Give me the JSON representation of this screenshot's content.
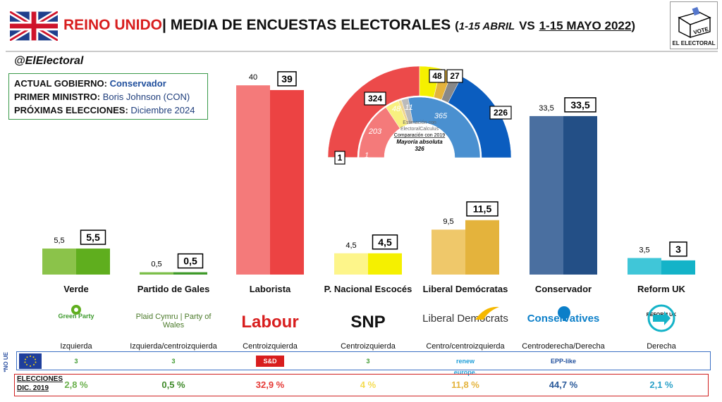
{
  "header": {
    "country": "REINO UNIDO",
    "separator": "|",
    "title": "MEDIA DE ENCUESTAS ELECTORALES",
    "period_a": "1-15 ABRIL",
    "vs": "VS",
    "period_b": "1-15 MAYO 2022"
  },
  "handle": "@ElElectoral",
  "info": {
    "gov_label": "ACTUAL GOBIERNO:",
    "gov_value": "Conservador",
    "pm_label": "PRIMER MINISTRO:",
    "pm_value": "Boris Johnson (CON)",
    "next_label": "PRÓXIMAS ELECCIONES:",
    "next_value": "Diciembre 2024"
  },
  "brand": {
    "vote": "VOTE",
    "name": "EL ELECTORAL"
  },
  "colors": {
    "verde_a": "#8bc34a",
    "verde_b": "#5fae1e",
    "gales_a": "#7cbf4a",
    "gales_b": "#3f9a2a",
    "laborista_a": "#f47a7a",
    "laborista_b": "#ec4343",
    "snp_a": "#fdf58a",
    "snp_b": "#f5f000",
    "libdem_a": "#efc86a",
    "libdem_b": "#e4b33c",
    "con_a": "#4a6fa0",
    "con_b": "#234f86",
    "reform_a": "#40c6d8",
    "reform_b": "#14b3c8"
  },
  "chart_data": {
    "type": "bar",
    "categories": [
      "Verde",
      "Partido de Gales",
      "Laborista",
      "P. Nacional Escocés",
      "Liberal Demócratas",
      "Conservador",
      "Reform UK"
    ],
    "series": [
      {
        "name": "1-15 ABRIL",
        "values": [
          5.5,
          0.5,
          40,
          4.5,
          9.5,
          33.5,
          3.5
        ],
        "labels": [
          "5,5",
          "0,5",
          "40",
          "4,5",
          "9,5",
          "33,5",
          "3,5"
        ]
      },
      {
        "name": "1-15 MAYO 2022",
        "values": [
          5.5,
          0.5,
          39,
          4.5,
          11.5,
          33.5,
          3
        ],
        "labels": [
          "5,5",
          "0,5",
          "39",
          "4,5",
          "11,5",
          "33,5",
          "3"
        ]
      }
    ],
    "ideologies": [
      "Izquierda",
      "Izquierda/centroizquierda",
      "Centroizquierda",
      "Centroizquierda",
      "Centro/centroizquierda",
      "Centroderecha/Derecha",
      "Derecha"
    ],
    "election_2019": [
      "2,8 %",
      "0,5 %",
      "32,9 %",
      "4 %",
      "11,8 %",
      "44,7 %",
      "2,1 %"
    ],
    "ylim": [
      0,
      45
    ],
    "seats": {
      "outer": [
        {
          "party": "Laborista",
          "value": 324,
          "color": "#ec4a4a"
        },
        {
          "party": "P. Nacional Escocés",
          "value": 48,
          "color": "#f5f000"
        },
        {
          "party": "Liberal Demócratas",
          "value": 27,
          "color": "#e4b33c"
        },
        {
          "party": "Otros",
          "value": 24,
          "color": "#888888"
        },
        {
          "party": "Conservador",
          "value": 226,
          "color": "#0b5dbf"
        },
        {
          "party": "Partido de Gales",
          "value": 1,
          "color": "#3f9a2a"
        }
      ],
      "inner": [
        {
          "party": "Laborista",
          "value": 203,
          "color": "#f47a7a"
        },
        {
          "party": "P. Nacional Escocés",
          "value": 48,
          "color": "#f8f080"
        },
        {
          "party": "Liberal Demócratas",
          "value": 11,
          "color": "#efd590"
        },
        {
          "party": "Otros",
          "value": 24,
          "color": "#bbbbbb"
        },
        {
          "party": "Conservador",
          "value": 365,
          "color": "#4a90d0"
        },
        {
          "party": "Partido de Gales",
          "value": 1,
          "color": "#7cbf4a"
        }
      ],
      "outer_labels": [
        "1",
        "324",
        "48",
        "27",
        "226"
      ],
      "inner_labels": [
        "203",
        "48",
        "11",
        "365",
        "1"
      ],
      "note1": "Estimación con",
      "note2": "ElectoralCalculus",
      "note3": "Comparación con 2019",
      "note4": "Mayoría absoluta",
      "note5": "326"
    }
  },
  "logos": [
    "Green Party",
    "Plaid Cymru | Party of Wales",
    "Labour",
    "SNP",
    "Liberal Democrats",
    "Conservatives",
    "REFORM UK"
  ],
  "eu_row": {
    "label": "*NO UE",
    "groups": [
      "3",
      "3",
      "S&D",
      "3",
      "renew europe.",
      "EPP-like",
      ""
    ]
  },
  "elections": {
    "label1": "ELECCIONES",
    "label2": "DIC. 2019"
  },
  "el_colors": [
    "#6ab04c",
    "#3f8a2a",
    "#e53935",
    "#f5dc50",
    "#e4b33c",
    "#2a5a9a",
    "#29a0c8"
  ]
}
